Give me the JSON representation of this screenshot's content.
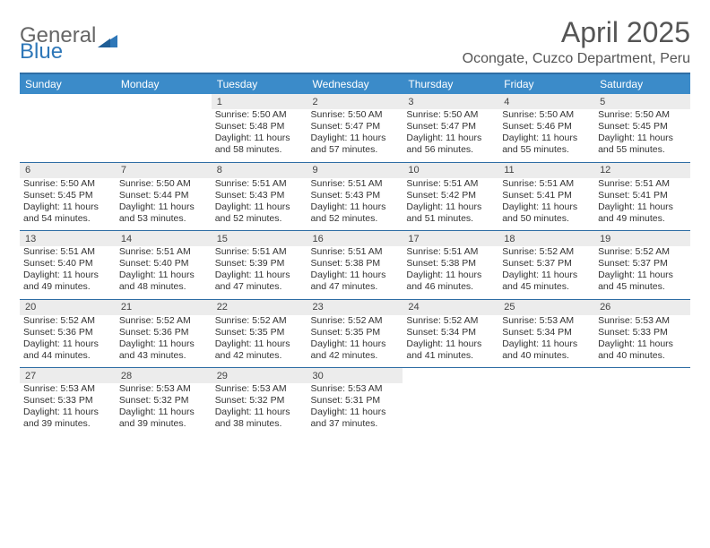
{
  "brand": {
    "part1": "General",
    "part2": "Blue"
  },
  "title": "April 2025",
  "location": "Ocongate, Cuzco Department, Peru",
  "colors": {
    "header_bg": "#3b8bc9",
    "header_border": "#2e6da4",
    "daynum_bg": "#ececec",
    "text": "#333333"
  },
  "daysOfWeek": [
    "Sunday",
    "Monday",
    "Tuesday",
    "Wednesday",
    "Thursday",
    "Friday",
    "Saturday"
  ],
  "weeks": [
    [
      null,
      null,
      {
        "n": "1",
        "sunrise": "5:50 AM",
        "sunset": "5:48 PM",
        "daylight": "11 hours and 58 minutes."
      },
      {
        "n": "2",
        "sunrise": "5:50 AM",
        "sunset": "5:47 PM",
        "daylight": "11 hours and 57 minutes."
      },
      {
        "n": "3",
        "sunrise": "5:50 AM",
        "sunset": "5:47 PM",
        "daylight": "11 hours and 56 minutes."
      },
      {
        "n": "4",
        "sunrise": "5:50 AM",
        "sunset": "5:46 PM",
        "daylight": "11 hours and 55 minutes."
      },
      {
        "n": "5",
        "sunrise": "5:50 AM",
        "sunset": "5:45 PM",
        "daylight": "11 hours and 55 minutes."
      }
    ],
    [
      {
        "n": "6",
        "sunrise": "5:50 AM",
        "sunset": "5:45 PM",
        "daylight": "11 hours and 54 minutes."
      },
      {
        "n": "7",
        "sunrise": "5:50 AM",
        "sunset": "5:44 PM",
        "daylight": "11 hours and 53 minutes."
      },
      {
        "n": "8",
        "sunrise": "5:51 AM",
        "sunset": "5:43 PM",
        "daylight": "11 hours and 52 minutes."
      },
      {
        "n": "9",
        "sunrise": "5:51 AM",
        "sunset": "5:43 PM",
        "daylight": "11 hours and 52 minutes."
      },
      {
        "n": "10",
        "sunrise": "5:51 AM",
        "sunset": "5:42 PM",
        "daylight": "11 hours and 51 minutes."
      },
      {
        "n": "11",
        "sunrise": "5:51 AM",
        "sunset": "5:41 PM",
        "daylight": "11 hours and 50 minutes."
      },
      {
        "n": "12",
        "sunrise": "5:51 AM",
        "sunset": "5:41 PM",
        "daylight": "11 hours and 49 minutes."
      }
    ],
    [
      {
        "n": "13",
        "sunrise": "5:51 AM",
        "sunset": "5:40 PM",
        "daylight": "11 hours and 49 minutes."
      },
      {
        "n": "14",
        "sunrise": "5:51 AM",
        "sunset": "5:40 PM",
        "daylight": "11 hours and 48 minutes."
      },
      {
        "n": "15",
        "sunrise": "5:51 AM",
        "sunset": "5:39 PM",
        "daylight": "11 hours and 47 minutes."
      },
      {
        "n": "16",
        "sunrise": "5:51 AM",
        "sunset": "5:38 PM",
        "daylight": "11 hours and 47 minutes."
      },
      {
        "n": "17",
        "sunrise": "5:51 AM",
        "sunset": "5:38 PM",
        "daylight": "11 hours and 46 minutes."
      },
      {
        "n": "18",
        "sunrise": "5:52 AM",
        "sunset": "5:37 PM",
        "daylight": "11 hours and 45 minutes."
      },
      {
        "n": "19",
        "sunrise": "5:52 AM",
        "sunset": "5:37 PM",
        "daylight": "11 hours and 45 minutes."
      }
    ],
    [
      {
        "n": "20",
        "sunrise": "5:52 AM",
        "sunset": "5:36 PM",
        "daylight": "11 hours and 44 minutes."
      },
      {
        "n": "21",
        "sunrise": "5:52 AM",
        "sunset": "5:36 PM",
        "daylight": "11 hours and 43 minutes."
      },
      {
        "n": "22",
        "sunrise": "5:52 AM",
        "sunset": "5:35 PM",
        "daylight": "11 hours and 42 minutes."
      },
      {
        "n": "23",
        "sunrise": "5:52 AM",
        "sunset": "5:35 PM",
        "daylight": "11 hours and 42 minutes."
      },
      {
        "n": "24",
        "sunrise": "5:52 AM",
        "sunset": "5:34 PM",
        "daylight": "11 hours and 41 minutes."
      },
      {
        "n": "25",
        "sunrise": "5:53 AM",
        "sunset": "5:34 PM",
        "daylight": "11 hours and 40 minutes."
      },
      {
        "n": "26",
        "sunrise": "5:53 AM",
        "sunset": "5:33 PM",
        "daylight": "11 hours and 40 minutes."
      }
    ],
    [
      {
        "n": "27",
        "sunrise": "5:53 AM",
        "sunset": "5:33 PM",
        "daylight": "11 hours and 39 minutes."
      },
      {
        "n": "28",
        "sunrise": "5:53 AM",
        "sunset": "5:32 PM",
        "daylight": "11 hours and 39 minutes."
      },
      {
        "n": "29",
        "sunrise": "5:53 AM",
        "sunset": "5:32 PM",
        "daylight": "11 hours and 38 minutes."
      },
      {
        "n": "30",
        "sunrise": "5:53 AM",
        "sunset": "5:31 PM",
        "daylight": "11 hours and 37 minutes."
      },
      null,
      null,
      null
    ]
  ],
  "labels": {
    "sunrise": "Sunrise:",
    "sunset": "Sunset:",
    "daylight": "Daylight:"
  }
}
